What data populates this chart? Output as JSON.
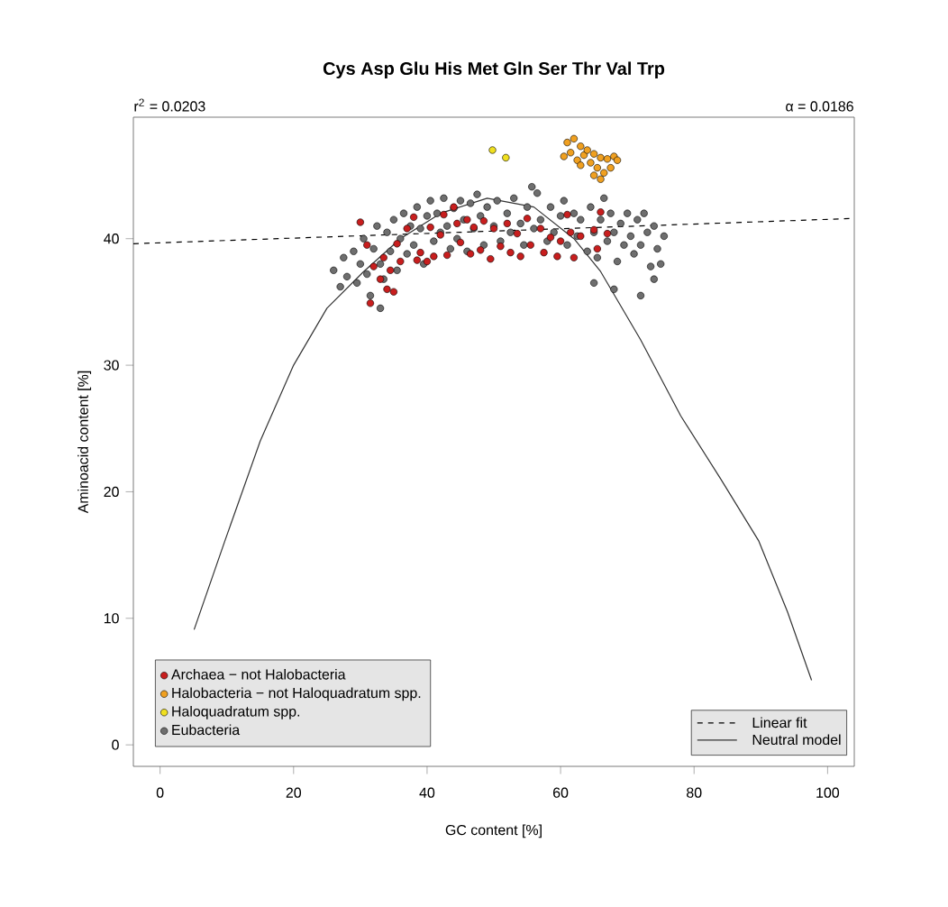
{
  "chart_data": {
    "type": "scatter",
    "title": "Cys Asp Glu His Met Gln Ser Thr Val Trp",
    "xlabel": "GC content [%]",
    "ylabel": "Aminoacid content [%]",
    "annotations": [
      "r$^{2}$ = 0.0203",
      "α = 0.0186"
    ],
    "xlim": [
      -4,
      104
    ],
    "ylim": [
      -1.7,
      49.6
    ],
    "xticks": [
      0,
      20,
      40,
      60,
      80,
      100
    ],
    "yticks": [
      0,
      10,
      20,
      30,
      40
    ],
    "grid": false,
    "legend": "bottom left",
    "series": [
      {
        "name": "Archaea − not Halobacteria",
        "marker": "circle",
        "color": "#c81e1e",
        "x": [
          30,
          31,
          32,
          33,
          33.5,
          34,
          34.5,
          35,
          35.5,
          36,
          37,
          38,
          38.5,
          39,
          40,
          40.5,
          41,
          42,
          42.5,
          43,
          44,
          44.5,
          45,
          46,
          46.5,
          47,
          48,
          48.5,
          49.5,
          50,
          51,
          52,
          52.5,
          53.5,
          54,
          55,
          55.5,
          57,
          57.5,
          58.5,
          59.5,
          60,
          61,
          61.5,
          62,
          63,
          65,
          65.5,
          66,
          67,
          31.5
        ],
        "values": [
          41.3,
          39.5,
          37.8,
          36.8,
          38.5,
          36,
          37.5,
          35.8,
          39.6,
          38.2,
          40.8,
          41.7,
          38.3,
          38.9,
          38.2,
          40.9,
          38.6,
          40.3,
          41.9,
          38.7,
          42.5,
          41.2,
          39.7,
          41.5,
          38.8,
          40.9,
          39.1,
          41.4,
          38.4,
          40.8,
          39.4,
          41.2,
          38.9,
          40.4,
          38.6,
          41.6,
          39.5,
          40.8,
          38.9,
          40.1,
          38.6,
          39.8,
          41.9,
          40.5,
          38.5,
          40.2,
          40.7,
          39.2,
          42.1,
          40.4,
          34.9
        ]
      },
      {
        "name": "Halobacteria − not Haloquadratum spp.",
        "marker": "circle",
        "color": "#f0a020",
        "x": [
          61,
          61.5,
          62,
          62.5,
          63,
          63.5,
          64,
          64.5,
          65,
          65.5,
          66,
          66.5,
          67,
          67.5,
          68,
          68.5,
          66,
          60.5,
          63,
          65
        ],
        "values": [
          47.6,
          46.8,
          47.9,
          46.2,
          47.3,
          46.6,
          47.0,
          46.0,
          46.7,
          45.6,
          46.4,
          45.2,
          46.3,
          45.6,
          46.5,
          46.2,
          44.7,
          46.5,
          45.8,
          45.0
        ]
      },
      {
        "name": "Haloquadratum spp.",
        "marker": "circle",
        "color": "#f0e020",
        "x": [
          49.8,
          51.8
        ],
        "values": [
          47.0,
          46.4
        ]
      },
      {
        "name": "Eubacteria",
        "marker": "circle",
        "color": "#6e6e6e",
        "x": [
          26,
          27,
          27.5,
          28,
          29,
          29.5,
          30,
          30.5,
          31,
          31.5,
          32,
          32.5,
          33,
          33.5,
          34,
          34.5,
          35,
          35.5,
          36,
          36.5,
          37,
          37.5,
          38,
          38.5,
          39,
          39.5,
          40,
          40.5,
          41,
          41.5,
          42,
          42.5,
          43,
          43.5,
          44,
          44.5,
          45,
          45.5,
          46,
          46.5,
          47,
          47.5,
          48,
          48.5,
          49,
          50,
          50.5,
          51,
          52,
          52.5,
          53,
          54,
          54.5,
          55,
          56,
          56.5,
          57,
          58,
          58.5,
          59,
          60,
          60.5,
          61,
          62,
          62.5,
          63,
          64,
          64.5,
          65,
          65.5,
          66,
          66.5,
          67,
          67.5,
          68,
          68.5,
          69,
          69.5,
          70,
          70.5,
          71,
          71.5,
          72,
          72.5,
          73,
          73.5,
          74,
          74.5,
          75,
          75.5,
          68,
          72,
          74,
          65,
          33,
          55.7
        ],
        "values": [
          37.5,
          36.2,
          38.5,
          37,
          39,
          36.5,
          38,
          40,
          37.2,
          35.5,
          39.2,
          41,
          38,
          36.8,
          40.5,
          39,
          41.5,
          37.5,
          40,
          42,
          38.8,
          41,
          39.5,
          42.5,
          40.8,
          38,
          41.8,
          43,
          39.8,
          42,
          40.5,
          43.2,
          41,
          39.2,
          42.4,
          40,
          43,
          41.5,
          39,
          42.8,
          40.8,
          43.5,
          41.8,
          39.5,
          42.5,
          41,
          43,
          39.8,
          42,
          40.5,
          43.2,
          41.2,
          39.5,
          42.5,
          40.8,
          43.6,
          41.5,
          39.8,
          42.5,
          40.5,
          41.8,
          43,
          39.5,
          42,
          40.2,
          41.5,
          39,
          42.5,
          40.5,
          38.5,
          41.5,
          43.2,
          39.8,
          42,
          40.5,
          38.2,
          41.2,
          39.5,
          42,
          40.2,
          38.8,
          41.5,
          39.5,
          42,
          40.5,
          37.8,
          41,
          39.2,
          38,
          40.2,
          36,
          35.5,
          36.8,
          36.5,
          34.5,
          44.1
        ]
      },
      {
        "name": "Linear fit",
        "type": "line",
        "marker": "none",
        "line_style": "dashed",
        "color": "#000000",
        "x": [
          -4,
          104
        ],
        "values": [
          39.6,
          41.6
        ]
      },
      {
        "name": "Neutral model",
        "type": "line",
        "marker": "none",
        "line_style": "solid",
        "color": "#333333",
        "x": [
          5.1,
          9.7,
          15,
          20,
          25,
          30.5,
          36,
          42,
          49,
          56,
          62,
          66,
          72,
          78,
          84,
          89.7,
          94,
          97.6
        ],
        "values": [
          9.1,
          16.1,
          24,
          30,
          34.5,
          37.4,
          40,
          42,
          43.2,
          42.5,
          40,
          37.4,
          32,
          26,
          21,
          16.1,
          10.5,
          5.1
        ]
      }
    ]
  }
}
